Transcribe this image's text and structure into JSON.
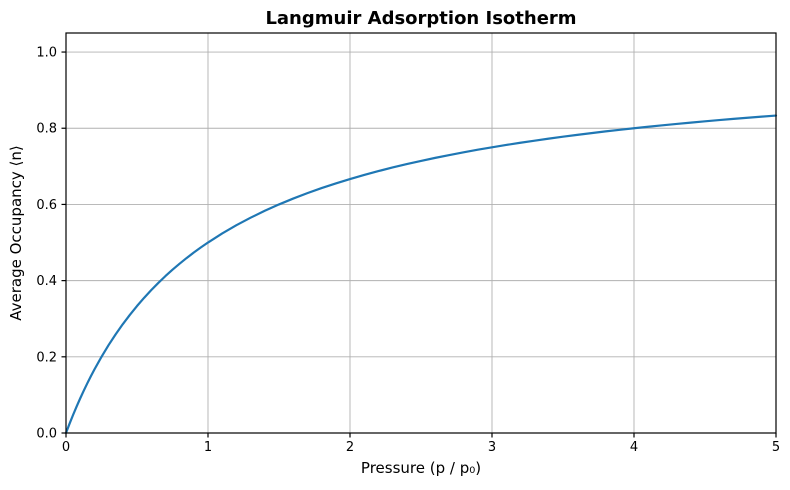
{
  "chart_data": {
    "type": "line",
    "title": "Langmuir Adsorption Isotherm",
    "xlabel": "Pressure (p / p₀)",
    "ylabel": "Average Occupancy ⟨n⟩",
    "xlim": [
      0,
      5
    ],
    "ylim": [
      0,
      1.05
    ],
    "xticks": {
      "values": [
        0,
        1,
        2,
        3,
        4,
        5
      ],
      "labels": [
        "0",
        "1",
        "2",
        "3",
        "4",
        "5"
      ]
    },
    "yticks": {
      "values": [
        0.0,
        0.2,
        0.4,
        0.6,
        0.8,
        1.0
      ],
      "labels": [
        "0.0",
        "0.2",
        "0.4",
        "0.6",
        "0.8",
        "1.0"
      ]
    },
    "grid": true,
    "legend": false,
    "colors": {
      "line": "#1f77b4",
      "grid": "#b0b0b0",
      "spine": "#000000",
      "background": "#ffffff",
      "text": "#000000"
    },
    "series": [
      {
        "color": "#1f77b4",
        "line_width": 2.2,
        "x": [
          0,
          0.025,
          0.05,
          0.075,
          0.1,
          0.125,
          0.15,
          0.175,
          0.2,
          0.25,
          0.3,
          0.35,
          0.4,
          0.45,
          0.5,
          0.55,
          0.6,
          0.65,
          0.7,
          0.75,
          0.8,
          0.85,
          0.9,
          0.95,
          1.0,
          1.1,
          1.2,
          1.3,
          1.4,
          1.5,
          1.6,
          1.7,
          1.8,
          1.9,
          2.0,
          2.1,
          2.2,
          2.3,
          2.4,
          2.5,
          2.6,
          2.7,
          2.8,
          2.9,
          3.0,
          3.1,
          3.2,
          3.3,
          3.4,
          3.5,
          3.6,
          3.7,
          3.8,
          3.9,
          4.0,
          4.1,
          4.2,
          4.3,
          4.4,
          4.5,
          4.6,
          4.7,
          4.8,
          4.9,
          5.0
        ],
        "y": [
          0,
          0.0244,
          0.0476,
          0.0698,
          0.0909,
          0.1111,
          0.1304,
          0.1489,
          0.1667,
          0.2,
          0.2308,
          0.2593,
          0.2857,
          0.3103,
          0.3333,
          0.3548,
          0.375,
          0.3939,
          0.4118,
          0.4286,
          0.4444,
          0.4595,
          0.4737,
          0.4872,
          0.5,
          0.5238,
          0.5455,
          0.5652,
          0.5833,
          0.6,
          0.6154,
          0.6296,
          0.6429,
          0.6552,
          0.6667,
          0.6774,
          0.6875,
          0.697,
          0.7059,
          0.7143,
          0.7222,
          0.7297,
          0.7368,
          0.7436,
          0.75,
          0.7561,
          0.7619,
          0.7674,
          0.7727,
          0.7778,
          0.7826,
          0.7872,
          0.7917,
          0.7959,
          0.8,
          0.8039,
          0.8077,
          0.8113,
          0.8148,
          0.8182,
          0.8214,
          0.8246,
          0.8276,
          0.8305,
          0.8333
        ]
      }
    ]
  }
}
